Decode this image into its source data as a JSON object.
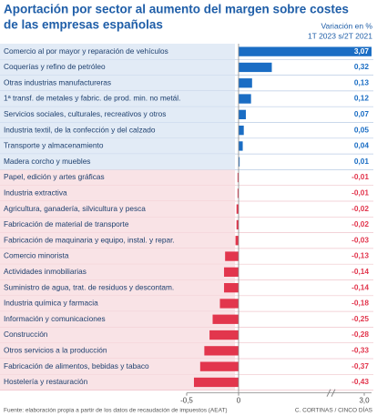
{
  "chart_data": {
    "type": "hbar",
    "title": [
      "Aportación por sector al aumento del margen sobre costes",
      "de las empresas españolas"
    ],
    "subtitle": [
      "Variación en %",
      "1T 2023 s/2T 2021"
    ],
    "categories": [
      "Comercio al por mayor y reparación de vehículos",
      "Coquerías y refino de petróleo",
      "Otras industrias manufactureras",
      "1ª transf. de metales y fabric. de prod. min. no metál.",
      "Servicios  sociales, culturales, recreativos y otros",
      "Industria textil, de la confección y del calzado",
      "Transporte y almacenamiento",
      "Madera corcho y muebles",
      "Papel, edición y artes gráficas",
      "Industria extractiva",
      "Agricultura, ganadería, silvicultura y pesca",
      "Fabricación de material de transporte",
      "Fabricación de maquinaria y equipo, instal. y repar.",
      "Comercio minorista",
      "Actividades inmobiliarias",
      "Suministro de agua, trat. de residuos y descontam.",
      "Industria química y farmacia",
      "Información y comunicaciones",
      "Construcción",
      "Otros servicios a la producción",
      "Fabricación de alimentos, bebidas y tabaco",
      "Hostelería y restauración"
    ],
    "values": [
      3.07,
      0.32,
      0.13,
      0.12,
      0.07,
      0.05,
      0.04,
      0.01,
      -0.01,
      -0.01,
      -0.02,
      -0.02,
      -0.03,
      -0.13,
      -0.14,
      -0.14,
      -0.18,
      -0.25,
      -0.28,
      -0.33,
      -0.37,
      -0.43
    ],
    "value_labels": [
      "3,07",
      "0,32",
      "0,13",
      "0,12",
      "0,07",
      "0,05",
      "0,04",
      "0,01",
      "-0,01",
      "-0,01",
      "-0,02",
      "-0,02",
      "-0,03",
      "-0,13",
      "-0,14",
      "-0,14",
      "-0,18",
      "-0,25",
      "-0,28",
      "-0,33",
      "-0,37",
      "-0,43"
    ],
    "color": "#1a6dc4",
    "negative_color": "#e2364d",
    "xlim": [
      -0.5,
      3.0
    ],
    "xticks": [
      {
        "value": -0.5,
        "label": "-0,5"
      },
      0,
      {
        "value": 3.0,
        "label": "3,0"
      }
    ],
    "axis_break": true,
    "source": "Fuente: elaboración propia a partir de los datos de recaudación de impuestos (AEAT)",
    "credit": "C. CORTINAS / CINCO DÍAS"
  }
}
